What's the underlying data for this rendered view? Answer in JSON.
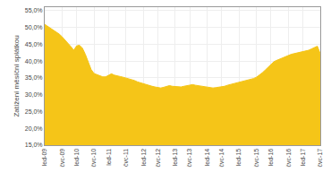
{
  "chart_data": {
    "type": "area",
    "ylabel": "Zatížení měsíční splátkou",
    "categories": [
      "led-09",
      null,
      null,
      null,
      null,
      null,
      "čvc-09",
      null,
      null,
      null,
      null,
      "led-10",
      null,
      null,
      null,
      null,
      null,
      "čvc-10",
      null,
      null,
      null,
      null,
      "led-11",
      null,
      null,
      null,
      null,
      null,
      "čvc-11",
      null,
      null,
      null,
      null,
      null,
      "led-12",
      null,
      null,
      null,
      null,
      "čvc-12",
      null,
      null,
      null,
      null,
      null,
      "led-13",
      null,
      null,
      null,
      null,
      "čvc-13",
      null,
      null,
      null,
      null,
      null,
      "led-14",
      null,
      null,
      null,
      null,
      "čvc-14",
      null,
      null,
      null,
      null,
      null,
      "led-15",
      null,
      null,
      null,
      null,
      null,
      "čvc-15",
      null,
      null,
      null,
      null,
      "led-16",
      null,
      null,
      null,
      null,
      null,
      "čvc-16",
      null,
      null,
      null,
      null,
      "led-17",
      null,
      null,
      null,
      null,
      null,
      "čvc-17"
    ],
    "values": [
      0.509,
      0.503,
      0.498,
      0.493,
      0.487,
      0.48,
      0.472,
      0.463,
      0.453,
      0.443,
      0.432,
      0.445,
      0.447,
      0.438,
      0.42,
      0.397,
      0.375,
      0.363,
      0.36,
      0.358,
      0.353,
      0.353,
      0.358,
      0.362,
      0.358,
      0.357,
      0.354,
      0.352,
      0.35,
      0.348,
      0.345,
      0.342,
      0.338,
      0.335,
      0.332,
      0.33,
      0.328,
      0.325,
      0.323,
      0.321,
      0.32,
      0.322,
      0.325,
      0.327,
      0.325,
      0.324,
      0.322,
      0.323,
      0.325,
      0.326,
      0.328,
      0.33,
      0.328,
      0.327,
      0.325,
      0.323,
      0.322,
      0.321,
      0.32,
      0.321,
      0.322,
      0.323,
      0.325,
      0.328,
      0.33,
      0.332,
      0.334,
      0.336,
      0.338,
      0.34,
      0.342,
      0.345,
      0.348,
      0.352,
      0.358,
      0.365,
      0.373,
      0.381,
      0.39,
      0.398,
      0.402,
      0.406,
      0.41,
      0.413,
      0.417,
      0.42,
      0.422,
      0.424,
      0.425,
      0.427,
      0.429,
      0.432,
      0.436,
      0.44,
      0.444,
      0.422
    ],
    "color": "#F5C518",
    "ylim": [
      0.15,
      0.56
    ],
    "yticks": [
      {
        "value": 0.15,
        "label": "15,0%"
      },
      {
        "value": 0.2,
        "label": "20,0%"
      },
      {
        "value": 0.25,
        "label": "25,0%"
      },
      {
        "value": 0.3,
        "label": "30,0%"
      },
      {
        "value": 0.35,
        "label": "35,0%"
      },
      {
        "value": 0.4,
        "label": "40,0%"
      },
      {
        "value": 0.45,
        "label": "45,0%"
      },
      {
        "value": 0.5,
        "label": "50,0%"
      },
      {
        "value": 0.55,
        "label": "55,0%"
      }
    ],
    "grid": true
  }
}
